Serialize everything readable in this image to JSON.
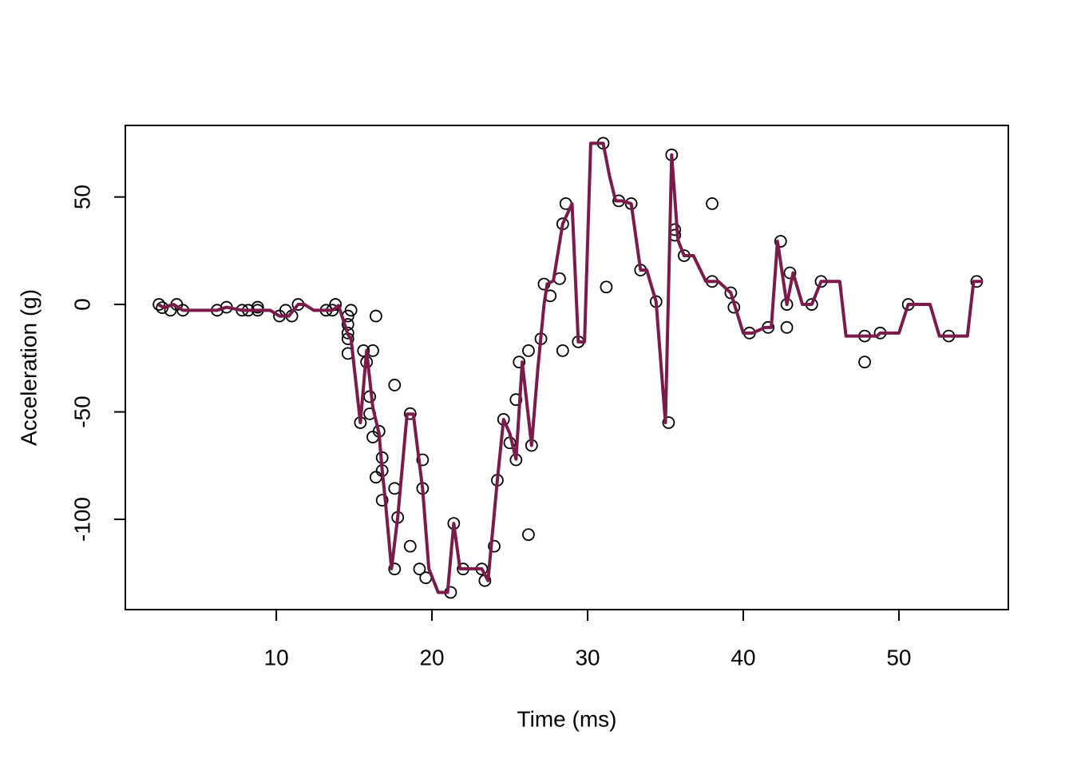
{
  "chart_data": {
    "type": "scatter",
    "x_label": "Time (ms)",
    "y_label": "Acceleration (g)",
    "xlim": [
      0.3,
      57.03
    ],
    "ylim": [
      -142,
      83.3
    ],
    "xticks": [
      10,
      20,
      30,
      40,
      50
    ],
    "yticks": [
      -100,
      -50,
      0,
      50
    ],
    "series": [
      {
        "mode": "points",
        "color": "#000000",
        "x": [
          2.46,
          2.67,
          3.2,
          3.6,
          4.0,
          6.2,
          6.8,
          7.8,
          8.2,
          8.8,
          8.8,
          10.2,
          10.6,
          11.0,
          11.4,
          13.2,
          13.6,
          13.8,
          14.6,
          14.6,
          14.6,
          14.6,
          14.6,
          14.8,
          15.4,
          15.6,
          15.8,
          16.0,
          16.0,
          16.2,
          16.2,
          16.4,
          16.4,
          16.6,
          16.8,
          16.8,
          16.8,
          17.6,
          17.6,
          17.6,
          17.8,
          18.6,
          18.6,
          19.2,
          19.4,
          19.4,
          19.6,
          21.2,
          21.4,
          22.0,
          23.2,
          23.4,
          24.0,
          24.2,
          24.6,
          25.0,
          25.4,
          25.4,
          25.6,
          26.2,
          26.2,
          26.4,
          27.0,
          27.2,
          27.6,
          28.2,
          28.4,
          28.4,
          28.6,
          29.4,
          31.0,
          31.2,
          32.0,
          32.8,
          33.4,
          34.4,
          35.2,
          35.4,
          35.6,
          35.6,
          36.2,
          38.0,
          38.0,
          39.2,
          39.4,
          40.4,
          41.6,
          42.4,
          42.8,
          42.8,
          43.0,
          44.4,
          45.0,
          47.8,
          47.8,
          48.8,
          50.6,
          53.2,
          55.0
        ],
        "values": [
          0,
          -1.5,
          -2.7,
          0,
          -2.7,
          -2.7,
          -1.3,
          -2.7,
          -2.7,
          -1.3,
          -2.7,
          -5.4,
          -2.7,
          -5.4,
          0,
          -2.7,
          -2.7,
          0,
          -9.3,
          -13.3,
          -16,
          -22.8,
          -5.4,
          -2.7,
          -55,
          -21.5,
          -26.8,
          -42.9,
          -50.9,
          -61.7,
          -21.5,
          -5.4,
          -80.4,
          -59,
          -71.3,
          -77.3,
          -91.1,
          -37.5,
          -85.6,
          -123.1,
          -99.1,
          -112.5,
          -50.8,
          -123.1,
          -72.3,
          -85.6,
          -127.2,
          -134,
          -101.9,
          -123.1,
          -123.1,
          -128.5,
          -112.5,
          -81.8,
          -53.5,
          -64.4,
          -44.3,
          -72.3,
          -26.8,
          -21.5,
          -107.1,
          -65.6,
          -16,
          9.5,
          4.0,
          12,
          -21.5,
          37.5,
          46.9,
          -17.4,
          75,
          8.1,
          48.2,
          46.9,
          16,
          1.3,
          -55,
          69.6,
          34.8,
          32.2,
          22.7,
          46.9,
          10.7,
          5.4,
          -1.3,
          -13.3,
          -10.7,
          29.4,
          0,
          -10.7,
          14.7,
          0,
          10.7,
          -14.7,
          -26.8,
          -13.3,
          0,
          -14.7,
          10.7
        ]
      },
      {
        "mode": "line",
        "color": "#7b1a4b",
        "x": [
          2.4,
          2.8,
          3.4,
          4.0,
          6.2,
          6.8,
          7.8,
          9.6,
          10.2,
          10.8,
          11.4,
          11.8,
          12.4,
          13.6,
          14.0,
          14.6,
          14.8,
          15.4,
          15.8,
          16.2,
          16.6,
          16.8,
          17.0,
          17.4,
          17.8,
          18.4,
          18.8,
          19.4,
          19.8,
          20.4,
          21.0,
          21.4,
          21.8,
          23.2,
          23.6,
          24.2,
          24.6,
          25.0,
          25.4,
          25.8,
          26.4,
          26.8,
          27.2,
          27.4,
          27.8,
          28.4,
          29.0,
          29.4,
          29.8,
          30.2,
          31.0,
          31.4,
          31.8,
          32.2,
          32.8,
          33.4,
          33.8,
          34.4,
          35.0,
          35.4,
          35.8,
          36.2,
          36.8,
          37.6,
          38.4,
          39.2,
          40.0,
          40.6,
          41.4,
          41.8,
          42.2,
          42.8,
          43.2,
          43.8,
          44.4,
          45.0,
          46.2,
          46.6,
          48.6,
          48.8,
          50.0,
          50.6,
          52.0,
          52.6,
          54.4,
          54.8,
          55.4
        ],
        "values": [
          0,
          -1.5,
          0,
          -2.7,
          -2.7,
          -1.3,
          -2.7,
          -2.7,
          -5.4,
          -5.4,
          0,
          0,
          -2.7,
          -2.7,
          -0.5,
          -14,
          -16,
          -55,
          -21.5,
          -48,
          -60,
          -77,
          -91,
          -123,
          -99,
          -51,
          -51,
          -86,
          -123,
          -134,
          -134,
          -101.9,
          -123,
          -123,
          -128.5,
          -81.8,
          -53.5,
          -60,
          -72,
          -26.8,
          -65.6,
          -30,
          0,
          9.5,
          11,
          37.5,
          46.9,
          -17.4,
          -17.4,
          75,
          75,
          60,
          48.2,
          48.2,
          46.9,
          16,
          16,
          1.3,
          -55,
          69.6,
          30,
          22.7,
          22.7,
          10.7,
          10.7,
          5.4,
          -13.3,
          -13.3,
          -10.7,
          -10.7,
          29.4,
          0,
          14.7,
          0,
          0,
          10.7,
          10.7,
          -14.7,
          -14.7,
          -13.3,
          -13.3,
          0,
          0,
          -14.7,
          -14.7,
          10.7,
          10.7
        ]
      }
    ]
  }
}
